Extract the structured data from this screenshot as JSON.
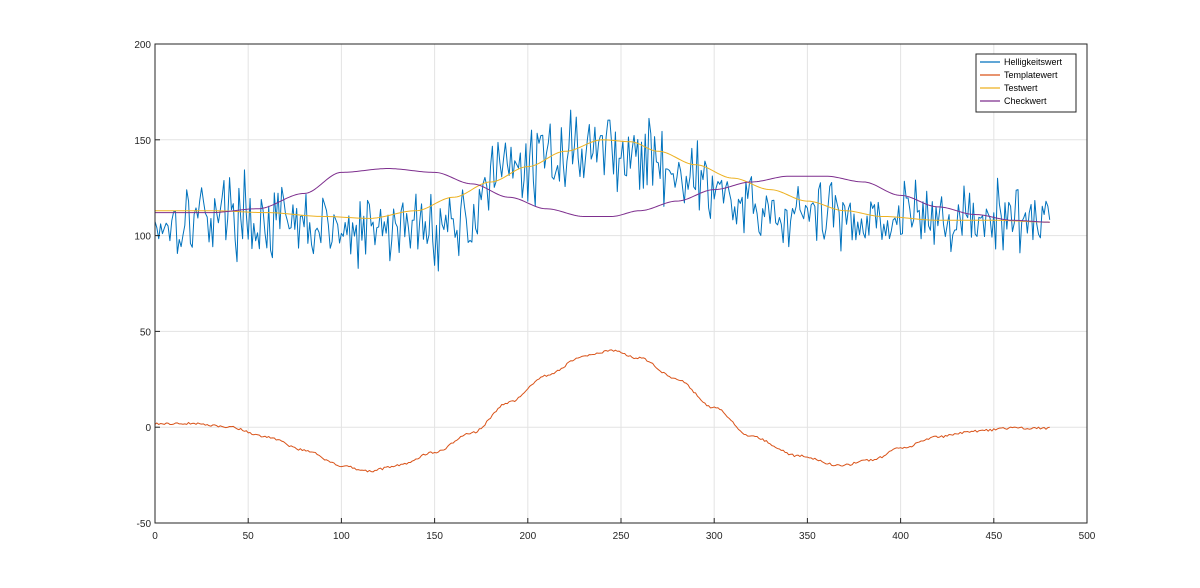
{
  "chart_data": {
    "type": "line",
    "title": "",
    "xlabel": "",
    "ylabel": "",
    "xlim": [
      0,
      500
    ],
    "ylim": [
      -50,
      200
    ],
    "xticks": [
      0,
      50,
      100,
      150,
      200,
      250,
      300,
      350,
      400,
      450,
      500
    ],
    "yticks": [
      -50,
      0,
      50,
      100,
      150,
      200
    ],
    "grid": true,
    "legend_position": "top-right",
    "noise_seed": 17,
    "series": [
      {
        "name": "Helligkeitswert",
        "color": "#0072BD",
        "style": "noisy",
        "noise_amplitude": 14,
        "points": [
          [
            0,
            107
          ],
          [
            40,
            113
          ],
          [
            60,
            106
          ],
          [
            90,
            104
          ],
          [
            105,
            100
          ],
          [
            125,
            104
          ],
          [
            150,
            105
          ],
          [
            170,
            108
          ],
          [
            178,
            130
          ],
          [
            200,
            136
          ],
          [
            220,
            145
          ],
          [
            240,
            147
          ],
          [
            260,
            141
          ],
          [
            280,
            135
          ],
          [
            300,
            124
          ],
          [
            320,
            111
          ],
          [
            345,
            110
          ],
          [
            370,
            110
          ],
          [
            400,
            110
          ],
          [
            430,
            108
          ],
          [
            460,
            108
          ],
          [
            480,
            108
          ]
        ]
      },
      {
        "name": "Templatewert",
        "color": "#D95319",
        "style": "jagged",
        "noise_amplitude": 0.6,
        "points": [
          [
            0,
            2
          ],
          [
            20,
            2
          ],
          [
            40,
            0
          ],
          [
            60,
            -5
          ],
          [
            80,
            -12
          ],
          [
            100,
            -20
          ],
          [
            115,
            -23
          ],
          [
            130,
            -20
          ],
          [
            150,
            -13
          ],
          [
            170,
            -3
          ],
          [
            190,
            13
          ],
          [
            210,
            27
          ],
          [
            230,
            37
          ],
          [
            245,
            40
          ],
          [
            260,
            36
          ],
          [
            280,
            25
          ],
          [
            300,
            10
          ],
          [
            320,
            -5
          ],
          [
            345,
            -15
          ],
          [
            368,
            -20
          ],
          [
            385,
            -17
          ],
          [
            400,
            -11
          ],
          [
            420,
            -5
          ],
          [
            440,
            -2
          ],
          [
            460,
            -0.5
          ],
          [
            480,
            -0.5
          ]
        ]
      },
      {
        "name": "Testwert",
        "color": "#EDB120",
        "style": "smooth",
        "noise_amplitude": 0,
        "points": [
          [
            0,
            113
          ],
          [
            30,
            113
          ],
          [
            60,
            112
          ],
          [
            90,
            110
          ],
          [
            115,
            109
          ],
          [
            140,
            113
          ],
          [
            160,
            120
          ],
          [
            180,
            128
          ],
          [
            200,
            136
          ],
          [
            220,
            144
          ],
          [
            240,
            150
          ],
          [
            255,
            149
          ],
          [
            270,
            144
          ],
          [
            290,
            137
          ],
          [
            310,
            130
          ],
          [
            330,
            124
          ],
          [
            350,
            118
          ],
          [
            370,
            113
          ],
          [
            390,
            110
          ],
          [
            420,
            108
          ],
          [
            450,
            108
          ],
          [
            480,
            107
          ]
        ]
      },
      {
        "name": "Checkwert",
        "color": "#7E2F8E",
        "style": "smooth",
        "noise_amplitude": 0,
        "points": [
          [
            0,
            112
          ],
          [
            30,
            112
          ],
          [
            55,
            114
          ],
          [
            80,
            122
          ],
          [
            100,
            133
          ],
          [
            125,
            135
          ],
          [
            150,
            133
          ],
          [
            170,
            127
          ],
          [
            190,
            120
          ],
          [
            210,
            114
          ],
          [
            230,
            110
          ],
          [
            245,
            110
          ],
          [
            260,
            113
          ],
          [
            280,
            118
          ],
          [
            300,
            124
          ],
          [
            320,
            128
          ],
          [
            340,
            131
          ],
          [
            360,
            131
          ],
          [
            380,
            128
          ],
          [
            400,
            121
          ],
          [
            420,
            115
          ],
          [
            440,
            111
          ],
          [
            460,
            108
          ],
          [
            480,
            107
          ]
        ]
      }
    ]
  }
}
